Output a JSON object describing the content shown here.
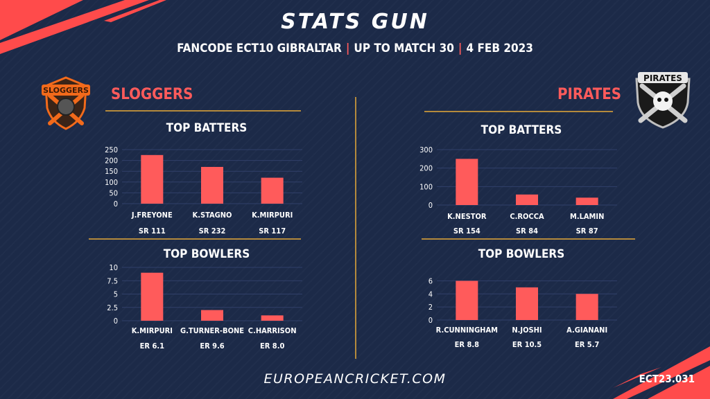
{
  "header": {
    "title": "STATS GUN",
    "competition": "FANCODE ECT10 GIBRALTAR",
    "match": "UP TO MATCH  30",
    "date": "4 FEB 2023"
  },
  "teams": {
    "left": {
      "name": "SLOGGERS",
      "logo_text": "SLOGGERS"
    },
    "right": {
      "name": "PIRATES",
      "logo_text": "PIRATES"
    }
  },
  "sections": {
    "batters_title": "TOP BATTERS",
    "bowlers_title": "TOP BOWLERS"
  },
  "footer": {
    "site": "EUROPEANCRICKET.COM",
    "code": "ECT23.031"
  },
  "colors": {
    "bar": "#ff5b5b",
    "background": "#1c2a48",
    "rule": "#b58a3c",
    "accent": "#ff5b5b"
  },
  "chart_data": [
    {
      "id": "left-batters",
      "type": "bar",
      "title": "TOP BATTERS",
      "categories": [
        "J.FREYONE",
        "K.STAGNO",
        "K.MIRPURI"
      ],
      "values": [
        225,
        170,
        120
      ],
      "sublabels": [
        "SR 111",
        "SR 232",
        "SR 117"
      ],
      "ylim": [
        0,
        250
      ],
      "yticks": [
        "0",
        "50",
        "100",
        "150",
        "200",
        "250"
      ]
    },
    {
      "id": "left-bowlers",
      "type": "bar",
      "title": "TOP BOWLERS",
      "categories": [
        "K.MIRPURI",
        "G.TURNER-BONE",
        "C.HARRISON"
      ],
      "values": [
        9,
        2,
        1
      ],
      "sublabels": [
        "ER 6.1",
        "ER 9.6",
        "ER 8.0"
      ],
      "ylim": [
        0,
        10
      ],
      "yticks": [
        "0",
        "2.5",
        "5",
        "7.5",
        "10"
      ]
    },
    {
      "id": "right-batters",
      "type": "bar",
      "title": "TOP BATTERS",
      "categories": [
        "K.NESTOR",
        "C.ROCCA",
        "M.LAMIN"
      ],
      "values": [
        250,
        57,
        40
      ],
      "sublabels": [
        "SR 154",
        "SR 84",
        "SR 87"
      ],
      "ylim": [
        0,
        300
      ],
      "yticks": [
        "0",
        "100",
        "200",
        "300"
      ]
    },
    {
      "id": "right-bowlers",
      "type": "bar",
      "title": "TOP BOWLERS",
      "categories": [
        "R.CUNNINGHAM",
        "N.JOSHI",
        "A.GIANANI"
      ],
      "values": [
        6,
        5,
        4
      ],
      "sublabels": [
        "ER 8.8",
        "ER 10.5",
        "ER 5.7"
      ],
      "ylim": [
        0,
        7
      ],
      "yticks": [
        "0",
        "2",
        "4",
        "6"
      ]
    }
  ]
}
